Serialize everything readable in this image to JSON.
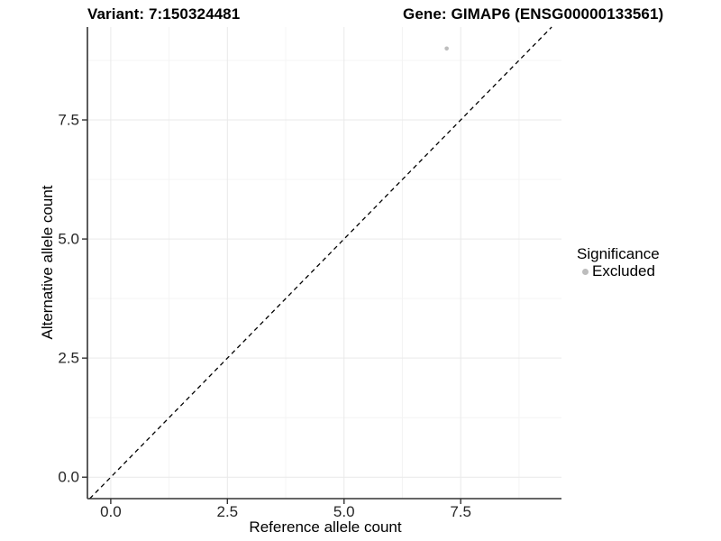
{
  "figure": {
    "background": "#ffffff"
  },
  "chart_data": {
    "type": "scatter",
    "title_left": "Variant: 7:150324481",
    "title_right": "Gene: GIMAP6 (ENSG00000133561)",
    "xlabel": "Reference allele count",
    "ylabel": "Alternative allele count",
    "xlim": [
      -0.5,
      9.66
    ],
    "ylim": [
      -0.45,
      9.45
    ],
    "x_tick_values": [
      0,
      2.5,
      5,
      7.5
    ],
    "x_tick_labels": [
      "0.0",
      "2.5",
      "5.0",
      "7.5"
    ],
    "y_tick_values": [
      0,
      2.5,
      5,
      7.5
    ],
    "y_tick_labels": [
      "0.0",
      "2.5",
      "5.0",
      "7.5"
    ],
    "x_minor_ticks": [
      1.25,
      3.75,
      6.25,
      8.75
    ],
    "y_minor_ticks": [
      1.25,
      3.75,
      6.25,
      8.75
    ],
    "grid": {
      "show": true,
      "major_color": "#e9e9e9",
      "minor_color": "#f4f4f4"
    },
    "axis_color": "#333333",
    "tick_label_color": "#262626",
    "identity_line": {
      "slope": 1,
      "intercept": 0,
      "style": "dashed",
      "color": "#000000"
    },
    "series": [
      {
        "name": "Excluded",
        "color": "#bdbdbd",
        "points": [
          {
            "x": 7.2,
            "y": 9.0
          }
        ]
      }
    ],
    "legend": {
      "title": "Significance",
      "position": "right",
      "items": [
        {
          "label": "Excluded",
          "color": "#bdbdbd",
          "marker": "circle"
        }
      ]
    }
  }
}
